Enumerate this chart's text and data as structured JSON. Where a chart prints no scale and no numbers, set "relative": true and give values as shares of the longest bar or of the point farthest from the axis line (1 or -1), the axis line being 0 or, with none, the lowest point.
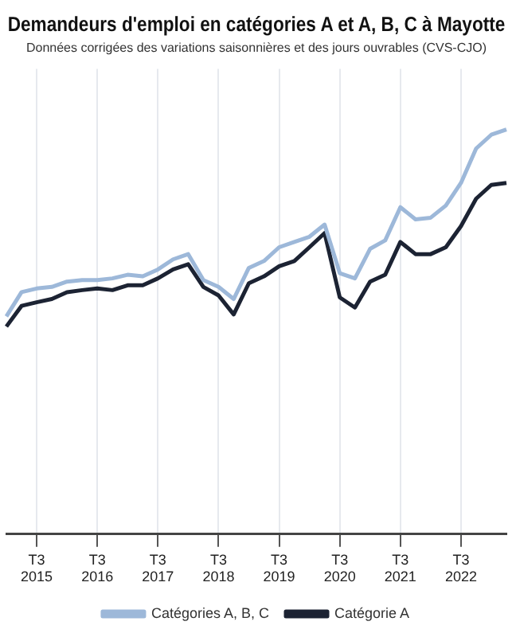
{
  "chart_data": {
    "type": "line",
    "title": "Demandeurs d'emploi en catégories A et A, B, C à Mayotte",
    "subtitle": "Données corrigées des variations saisonnières et des jours ouvrables (CVS-CJO)",
    "relative": true,
    "grid": "x",
    "legend": "bottom",
    "marker": "none",
    "line_style": "solid",
    "categories": [
      null,
      null,
      "T3\n2015",
      null,
      null,
      null,
      "T3\n2016",
      null,
      null,
      null,
      "T3\n2017",
      null,
      null,
      null,
      "T3\n2018",
      null,
      null,
      null,
      "T3\n2019",
      null,
      null,
      null,
      "T3\n2020",
      null,
      null,
      null,
      "T3\n2021",
      null,
      null,
      null,
      "T3\n2022",
      null,
      null,
      null
    ],
    "series": [
      {
        "name": "Catégories A, B, C",
        "color": "#9db8d9",
        "values": [
          0.538,
          0.598,
          0.607,
          0.611,
          0.624,
          0.628,
          0.628,
          0.632,
          0.641,
          0.637,
          0.654,
          0.679,
          0.692,
          0.628,
          0.611,
          0.581,
          0.658,
          0.675,
          0.709,
          0.722,
          0.735,
          0.765,
          0.645,
          0.632,
          0.705,
          0.726,
          0.808,
          0.778,
          0.782,
          0.812,
          0.868,
          0.953,
          0.987,
          1
        ]
      },
      {
        "name": "Catégorie A",
        "color": "#1c2333",
        "values": [
          0.513,
          0.564,
          0.573,
          0.581,
          0.598,
          0.603,
          0.607,
          0.603,
          0.615,
          0.615,
          0.632,
          0.654,
          0.667,
          0.611,
          0.59,
          0.543,
          0.62,
          0.637,
          0.662,
          0.675,
          0.709,
          0.744,
          0.585,
          0.56,
          0.624,
          0.641,
          0.722,
          0.692,
          0.692,
          0.709,
          0.761,
          0.829,
          0.863,
          0.868
        ]
      }
    ]
  }
}
